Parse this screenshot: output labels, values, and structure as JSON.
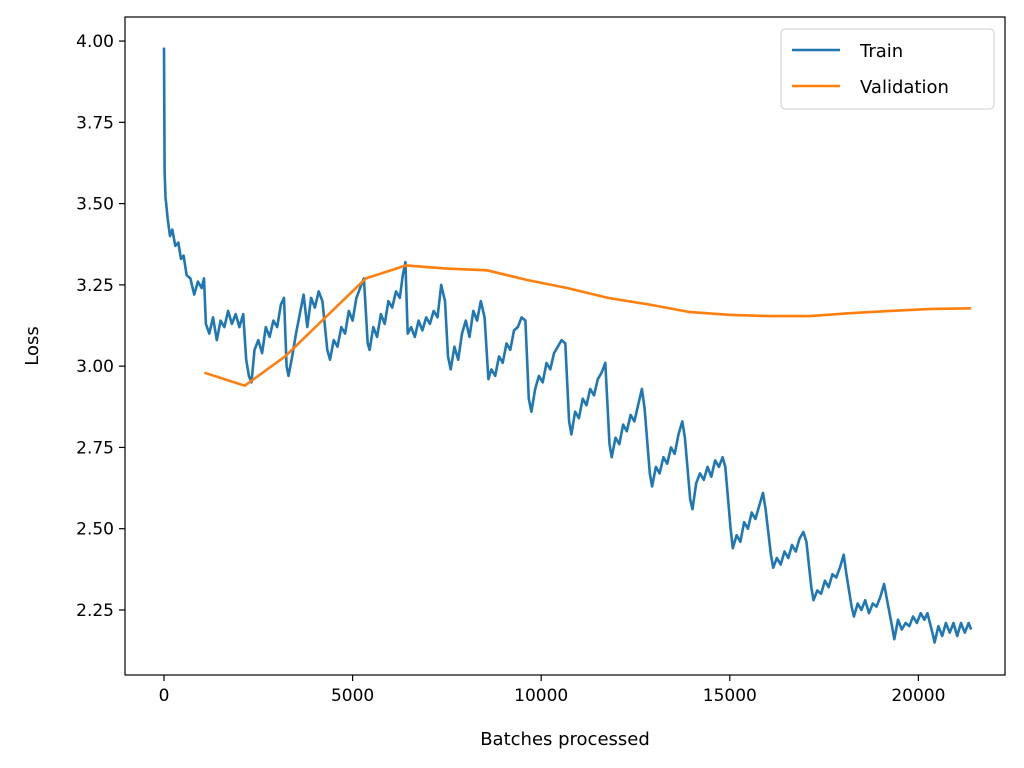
{
  "chart_data": {
    "type": "line",
    "title": "",
    "xlabel": "Batches processed",
    "ylabel": "Loss",
    "xlim": [
      -1034,
      22296
    ],
    "ylim": [
      2.05,
      4.074
    ],
    "xticks": [
      0,
      5000,
      10000,
      15000,
      20000
    ],
    "yticks": [
      2.25,
      2.5,
      2.75,
      3.0,
      3.25,
      3.5,
      3.75,
      4.0
    ],
    "ytick_labels": [
      "2.25",
      "2.50",
      "2.75",
      "3.00",
      "3.25",
      "3.50",
      "3.75",
      "4.00"
    ],
    "grid": false,
    "legend": "top-right",
    "series": [
      {
        "name": "Train",
        "color": "#1f77b4",
        "points": [
          [
            0,
            3.98
          ],
          [
            15,
            3.6
          ],
          [
            40,
            3.52
          ],
          [
            100,
            3.45
          ],
          [
            160,
            3.4
          ],
          [
            220,
            3.42
          ],
          [
            300,
            3.37
          ],
          [
            380,
            3.38
          ],
          [
            450,
            3.33
          ],
          [
            520,
            3.34
          ],
          [
            600,
            3.28
          ],
          [
            700,
            3.27
          ],
          [
            800,
            3.22
          ],
          [
            900,
            3.26
          ],
          [
            1000,
            3.24
          ],
          [
            1060,
            3.27
          ],
          [
            1110,
            3.13
          ],
          [
            1200,
            3.1
          ],
          [
            1300,
            3.15
          ],
          [
            1400,
            3.08
          ],
          [
            1500,
            3.14
          ],
          [
            1600,
            3.12
          ],
          [
            1700,
            3.17
          ],
          [
            1800,
            3.13
          ],
          [
            1900,
            3.16
          ],
          [
            2000,
            3.12
          ],
          [
            2100,
            3.16
          ],
          [
            2180,
            3.02
          ],
          [
            2250,
            2.97
          ],
          [
            2320,
            2.95
          ],
          [
            2400,
            3.05
          ],
          [
            2500,
            3.08
          ],
          [
            2600,
            3.04
          ],
          [
            2700,
            3.12
          ],
          [
            2800,
            3.09
          ],
          [
            2900,
            3.14
          ],
          [
            3000,
            3.12
          ],
          [
            3100,
            3.19
          ],
          [
            3180,
            3.21
          ],
          [
            3250,
            3.0
          ],
          [
            3300,
            2.97
          ],
          [
            3400,
            3.03
          ],
          [
            3500,
            3.1
          ],
          [
            3600,
            3.16
          ],
          [
            3700,
            3.22
          ],
          [
            3800,
            3.12
          ],
          [
            3900,
            3.21
          ],
          [
            4000,
            3.18
          ],
          [
            4100,
            3.23
          ],
          [
            4200,
            3.2
          ],
          [
            4330,
            3.05
          ],
          [
            4400,
            3.02
          ],
          [
            4500,
            3.08
          ],
          [
            4600,
            3.06
          ],
          [
            4700,
            3.12
          ],
          [
            4800,
            3.1
          ],
          [
            4900,
            3.17
          ],
          [
            5000,
            3.14
          ],
          [
            5100,
            3.21
          ],
          [
            5200,
            3.24
          ],
          [
            5300,
            3.27
          ],
          [
            5400,
            3.07
          ],
          [
            5450,
            3.05
          ],
          [
            5550,
            3.12
          ],
          [
            5650,
            3.09
          ],
          [
            5750,
            3.16
          ],
          [
            5850,
            3.13
          ],
          [
            5950,
            3.2
          ],
          [
            6050,
            3.18
          ],
          [
            6150,
            3.23
          ],
          [
            6250,
            3.21
          ],
          [
            6330,
            3.28
          ],
          [
            6400,
            3.32
          ],
          [
            6460,
            3.1
          ],
          [
            6550,
            3.12
          ],
          [
            6650,
            3.09
          ],
          [
            6750,
            3.14
          ],
          [
            6850,
            3.11
          ],
          [
            6950,
            3.15
          ],
          [
            7050,
            3.13
          ],
          [
            7150,
            3.17
          ],
          [
            7250,
            3.15
          ],
          [
            7350,
            3.25
          ],
          [
            7450,
            3.2
          ],
          [
            7530,
            3.03
          ],
          [
            7600,
            2.99
          ],
          [
            7700,
            3.06
          ],
          [
            7800,
            3.02
          ],
          [
            7900,
            3.1
          ],
          [
            8000,
            3.14
          ],
          [
            8100,
            3.09
          ],
          [
            8200,
            3.17
          ],
          [
            8300,
            3.14
          ],
          [
            8400,
            3.2
          ],
          [
            8500,
            3.15
          ],
          [
            8600,
            2.96
          ],
          [
            8680,
            2.99
          ],
          [
            8780,
            2.97
          ],
          [
            8880,
            3.03
          ],
          [
            8980,
            3.01
          ],
          [
            9080,
            3.07
          ],
          [
            9180,
            3.05
          ],
          [
            9280,
            3.11
          ],
          [
            9380,
            3.12
          ],
          [
            9480,
            3.15
          ],
          [
            9580,
            3.14
          ],
          [
            9670,
            2.9
          ],
          [
            9740,
            2.86
          ],
          [
            9840,
            2.93
          ],
          [
            9940,
            2.97
          ],
          [
            10040,
            2.95
          ],
          [
            10140,
            3.01
          ],
          [
            10240,
            2.99
          ],
          [
            10340,
            3.04
          ],
          [
            10440,
            3.06
          ],
          [
            10540,
            3.08
          ],
          [
            10640,
            3.07
          ],
          [
            10740,
            2.83
          ],
          [
            10800,
            2.79
          ],
          [
            10900,
            2.86
          ],
          [
            11000,
            2.84
          ],
          [
            11100,
            2.9
          ],
          [
            11200,
            2.88
          ],
          [
            11300,
            2.93
          ],
          [
            11400,
            2.91
          ],
          [
            11500,
            2.96
          ],
          [
            11600,
            2.98
          ],
          [
            11700,
            3.01
          ],
          [
            11810,
            2.76
          ],
          [
            11870,
            2.72
          ],
          [
            11970,
            2.78
          ],
          [
            12070,
            2.76
          ],
          [
            12170,
            2.82
          ],
          [
            12270,
            2.8
          ],
          [
            12370,
            2.85
          ],
          [
            12470,
            2.83
          ],
          [
            12570,
            2.88
          ],
          [
            12670,
            2.93
          ],
          [
            12740,
            2.87
          ],
          [
            12880,
            2.67
          ],
          [
            12940,
            2.63
          ],
          [
            13040,
            2.69
          ],
          [
            13140,
            2.67
          ],
          [
            13240,
            2.72
          ],
          [
            13340,
            2.7
          ],
          [
            13440,
            2.75
          ],
          [
            13540,
            2.73
          ],
          [
            13640,
            2.79
          ],
          [
            13740,
            2.83
          ],
          [
            13810,
            2.78
          ],
          [
            13950,
            2.59
          ],
          [
            14010,
            2.56
          ],
          [
            14110,
            2.64
          ],
          [
            14210,
            2.67
          ],
          [
            14310,
            2.65
          ],
          [
            14410,
            2.69
          ],
          [
            14510,
            2.66
          ],
          [
            14610,
            2.71
          ],
          [
            14710,
            2.69
          ],
          [
            14810,
            2.72
          ],
          [
            14880,
            2.69
          ],
          [
            15020,
            2.5
          ],
          [
            15080,
            2.44
          ],
          [
            15180,
            2.48
          ],
          [
            15280,
            2.46
          ],
          [
            15380,
            2.52
          ],
          [
            15480,
            2.5
          ],
          [
            15580,
            2.55
          ],
          [
            15680,
            2.53
          ],
          [
            15780,
            2.57
          ],
          [
            15880,
            2.61
          ],
          [
            15950,
            2.56
          ],
          [
            16090,
            2.42
          ],
          [
            16150,
            2.38
          ],
          [
            16250,
            2.41
          ],
          [
            16350,
            2.39
          ],
          [
            16450,
            2.43
          ],
          [
            16550,
            2.41
          ],
          [
            16650,
            2.45
          ],
          [
            16750,
            2.43
          ],
          [
            16850,
            2.47
          ],
          [
            16950,
            2.49
          ],
          [
            17030,
            2.46
          ],
          [
            17160,
            2.32
          ],
          [
            17220,
            2.28
          ],
          [
            17320,
            2.31
          ],
          [
            17420,
            2.3
          ],
          [
            17520,
            2.34
          ],
          [
            17620,
            2.32
          ],
          [
            17720,
            2.36
          ],
          [
            17820,
            2.35
          ],
          [
            17920,
            2.38
          ],
          [
            18020,
            2.42
          ],
          [
            18090,
            2.36
          ],
          [
            18230,
            2.26
          ],
          [
            18290,
            2.23
          ],
          [
            18390,
            2.27
          ],
          [
            18490,
            2.25
          ],
          [
            18590,
            2.28
          ],
          [
            18690,
            2.24
          ],
          [
            18790,
            2.27
          ],
          [
            18890,
            2.26
          ],
          [
            18990,
            2.29
          ],
          [
            19090,
            2.33
          ],
          [
            19170,
            2.28
          ],
          [
            19300,
            2.2
          ],
          [
            19360,
            2.16
          ],
          [
            19460,
            2.22
          ],
          [
            19560,
            2.19
          ],
          [
            19660,
            2.21
          ],
          [
            19760,
            2.2
          ],
          [
            19860,
            2.23
          ],
          [
            19960,
            2.21
          ],
          [
            20060,
            2.24
          ],
          [
            20160,
            2.22
          ],
          [
            20240,
            2.24
          ],
          [
            20370,
            2.18
          ],
          [
            20430,
            2.15
          ],
          [
            20530,
            2.2
          ],
          [
            20630,
            2.17
          ],
          [
            20730,
            2.21
          ],
          [
            20830,
            2.18
          ],
          [
            20930,
            2.21
          ],
          [
            21030,
            2.17
          ],
          [
            21130,
            2.21
          ],
          [
            21230,
            2.18
          ],
          [
            21330,
            2.21
          ],
          [
            21400,
            2.19
          ]
        ]
      },
      {
        "name": "Validation",
        "color": "#ff7f0e",
        "points": [
          [
            1070,
            2.98
          ],
          [
            2140,
            2.94
          ],
          [
            3210,
            3.03
          ],
          [
            4280,
            3.15
          ],
          [
            5350,
            3.27
          ],
          [
            6420,
            3.31
          ],
          [
            7490,
            3.3
          ],
          [
            8560,
            3.295
          ],
          [
            9630,
            3.265
          ],
          [
            10700,
            3.24
          ],
          [
            11770,
            3.21
          ],
          [
            12840,
            3.19
          ],
          [
            13910,
            3.167
          ],
          [
            14980,
            3.158
          ],
          [
            16050,
            3.154
          ],
          [
            17120,
            3.154
          ],
          [
            18190,
            3.163
          ],
          [
            19260,
            3.17
          ],
          [
            20330,
            3.176
          ],
          [
            21400,
            3.178
          ]
        ]
      }
    ]
  }
}
